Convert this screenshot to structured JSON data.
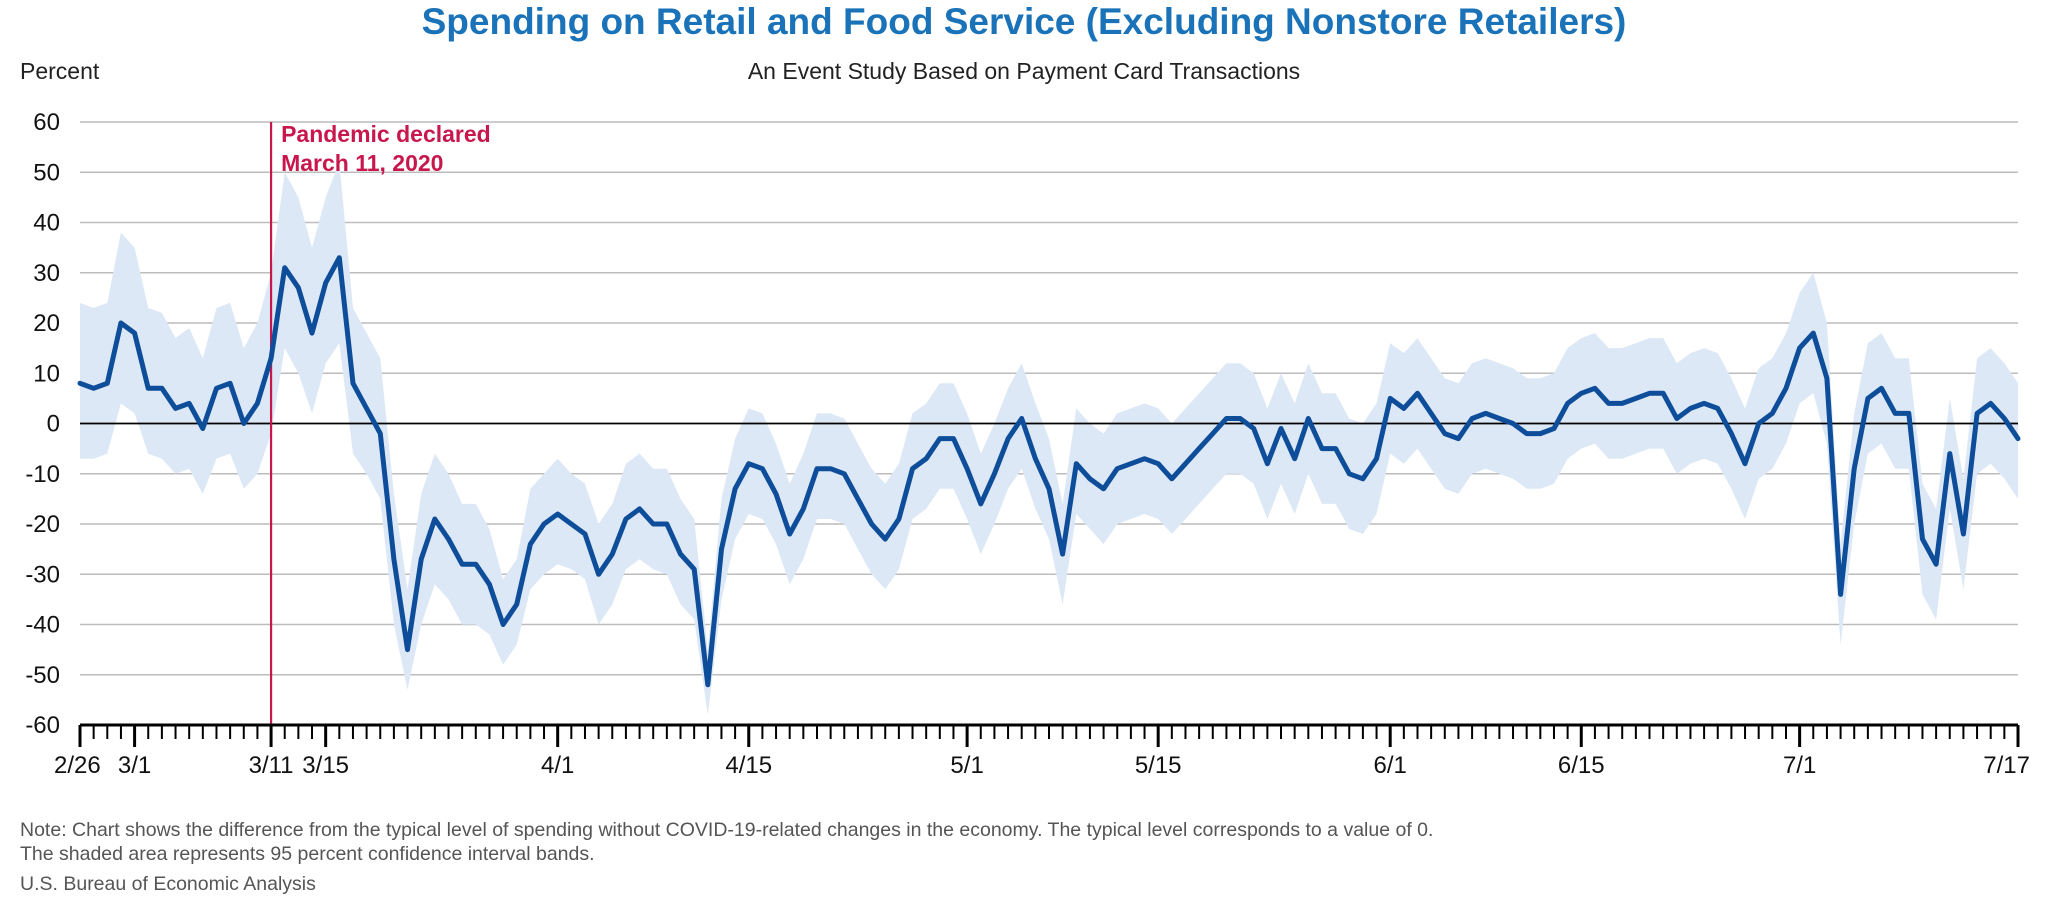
{
  "chart_data": {
    "type": "line",
    "title": "Spending on Retail and Food Service (Excluding Nonstore Retailers)",
    "subtitle": "An Event Study Based on Payment Card Transactions",
    "ylabel": "Percent",
    "xlabel": "",
    "ylim": [
      -60,
      60
    ],
    "yticks": [
      60,
      50,
      40,
      30,
      20,
      10,
      0,
      -10,
      -20,
      -30,
      -40,
      -50,
      -60
    ],
    "x_start": "2/26",
    "x_end": "7/17",
    "xtick_labels": [
      {
        "label": "2/26",
        "day": 0
      },
      {
        "label": "3/1",
        "day": 4
      },
      {
        "label": "3/11",
        "day": 14
      },
      {
        "label": "3/15",
        "day": 18
      },
      {
        "label": "4/1",
        "day": 35
      },
      {
        "label": "4/15",
        "day": 49
      },
      {
        "label": "5/1",
        "day": 65
      },
      {
        "label": "5/15",
        "day": 79
      },
      {
        "label": "6/1",
        "day": 96
      },
      {
        "label": "6/15",
        "day": 110
      },
      {
        "label": "7/1",
        "day": 126
      },
      {
        "label": "7/17",
        "day": 142
      }
    ],
    "grid": true,
    "series": [
      {
        "color": "#0d4d99",
        "values": [
          8,
          7,
          8,
          20,
          18,
          7,
          7,
          3,
          4,
          -1,
          7,
          8,
          0,
          4,
          13,
          31,
          27,
          18,
          28,
          33,
          8,
          3,
          -2,
          -27,
          -45,
          -27,
          -19,
          -23,
          -28,
          -28,
          -32,
          -40,
          -36,
          -24,
          -20,
          -18,
          -20,
          -22,
          -30,
          -26,
          -19,
          -17,
          -20,
          -20,
          -26,
          -29,
          -52,
          -25,
          -13,
          -8,
          -9,
          -14,
          -22,
          -17,
          -9,
          -9,
          -10,
          -15,
          -20,
          -23,
          -19,
          -9,
          -7,
          -3,
          -3,
          -9,
          -16,
          -10,
          -3,
          1,
          -7,
          -13,
          -26,
          -8,
          -11,
          -13,
          -9,
          -8,
          -7,
          -8,
          -11,
          -8,
          -5,
          -2,
          1,
          1,
          -1,
          -8,
          -1,
          -7,
          1,
          -5,
          -5,
          -10,
          -11,
          -7,
          5,
          3,
          6,
          2,
          -2,
          -3,
          1,
          2,
          1,
          0,
          -2,
          -2,
          -1,
          4,
          6,
          7,
          4,
          4,
          5,
          6,
          6,
          1,
          3,
          4,
          3,
          -2,
          -8,
          0,
          2,
          7,
          15,
          18,
          9,
          -34,
          -9,
          5,
          7,
          2,
          2,
          -23,
          -28,
          -6,
          -22,
          2,
          4,
          1,
          -3
        ],
        "ci_lower": [
          -7,
          -7,
          -6,
          4,
          2,
          -6,
          -7,
          -10,
          -9,
          -14,
          -7,
          -6,
          -13,
          -10,
          -2,
          15,
          10,
          2,
          12,
          16,
          -6,
          -10,
          -15,
          -40,
          -53,
          -40,
          -32,
          -35,
          -40,
          -40,
          -42,
          -48,
          -44,
          -33,
          -30,
          -28,
          -29,
          -31,
          -40,
          -36,
          -29,
          -27,
          -29,
          -30,
          -36,
          -39,
          -58,
          -35,
          -23,
          -18,
          -19,
          -24,
          -32,
          -27,
          -19,
          -19,
          -20,
          -25,
          -30,
          -33,
          -29,
          -19,
          -17,
          -13,
          -13,
          -19,
          -26,
          -20,
          -13,
          -9,
          -17,
          -23,
          -36,
          -18,
          -21,
          -24,
          -20,
          -19,
          -18,
          -19,
          -22,
          -19,
          -16,
          -13,
          -10,
          -10,
          -12,
          -19,
          -12,
          -18,
          -10,
          -16,
          -16,
          -21,
          -22,
          -18,
          -6,
          -8,
          -5,
          -9,
          -13,
          -14,
          -10,
          -9,
          -10,
          -11,
          -13,
          -13,
          -12,
          -7,
          -5,
          -4,
          -7,
          -7,
          -6,
          -5,
          -5,
          -10,
          -8,
          -7,
          -8,
          -13,
          -19,
          -11,
          -9,
          -4,
          4,
          6,
          -4,
          -44,
          -20,
          -6,
          -4,
          -9,
          -9,
          -34,
          -39,
          -17,
          -33,
          -10,
          -8,
          -11,
          -15
        ],
        "ci_upper": [
          24,
          23,
          24,
          38,
          35,
          23,
          22,
          17,
          19,
          13,
          23,
          24,
          15,
          20,
          30,
          50,
          45,
          35,
          45,
          52,
          23,
          18,
          13,
          -14,
          -33,
          -14,
          -6,
          -10,
          -16,
          -16,
          -21,
          -31,
          -27,
          -13,
          -10,
          -7,
          -10,
          -12,
          -20,
          -16,
          -8,
          -6,
          -9,
          -9,
          -15,
          -19,
          -45,
          -15,
          -3,
          3,
          2,
          -4,
          -12,
          -6,
          2,
          2,
          1,
          -4,
          -9,
          -12,
          -8,
          2,
          4,
          8,
          8,
          2,
          -6,
          0,
          7,
          12,
          4,
          -3,
          -16,
          3,
          0,
          -2,
          2,
          3,
          4,
          3,
          0,
          3,
          6,
          9,
          12,
          12,
          10,
          3,
          10,
          4,
          12,
          6,
          6,
          1,
          0,
          4,
          16,
          14,
          17,
          13,
          9,
          8,
          12,
          13,
          12,
          11,
          9,
          9,
          10,
          15,
          17,
          18,
          15,
          15,
          16,
          17,
          17,
          12,
          14,
          15,
          14,
          9,
          3,
          11,
          13,
          18,
          26,
          30,
          20,
          -24,
          2,
          16,
          18,
          13,
          13,
          -12,
          -17,
          5,
          -11,
          13,
          15,
          12,
          8
        ]
      }
    ],
    "ci_band_color": "#dde8f6",
    "zero_line": true,
    "event_line": {
      "day": 14,
      "color": "#c8174d"
    },
    "annotation_lines": [
      "Pandemic declared",
      "March 11, 2020"
    ]
  },
  "footer": {
    "note_line1": "Note: Chart shows the difference from the typical level of spending without COVID-19-related changes in the economy. The typical level corresponds to a value of 0.",
    "note_line2": "The shaded area represents 95 percent confidence interval bands.",
    "source": "U.S. Bureau of Economic Analysis"
  }
}
